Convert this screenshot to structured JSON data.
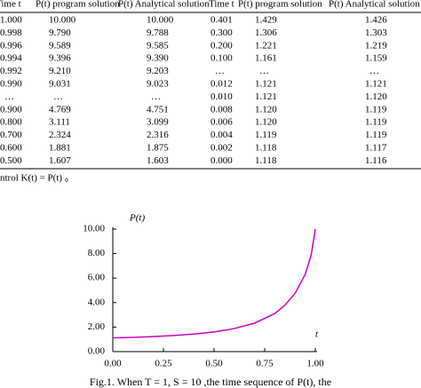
{
  "table": {
    "header": [
      "Time t",
      "P(t) program solution",
      "P(t) Analytical solution",
      "Time t",
      "P(t) program solution",
      "P(t) Analytical solution"
    ],
    "rows": [
      [
        "1.000",
        "10.000",
        "10.000",
        "0.401",
        "1.429",
        "1.426"
      ],
      [
        "0.998",
        "9.790",
        "9.788",
        "0.300",
        "1.306",
        "1.303"
      ],
      [
        "0.996",
        "9.589",
        "9.585",
        "0.200",
        "1.221",
        "1.219"
      ],
      [
        "0.994",
        "9.396",
        "9.390",
        "0.100",
        "1.161",
        "1.159"
      ],
      [
        "0.992",
        "9.210",
        "9.203",
        "…",
        "…",
        "…"
      ],
      [
        "0.990",
        "9.031",
        "9.023",
        "0.012",
        "1.121",
        "1.121"
      ],
      [
        "…",
        "…",
        "…",
        "0.010",
        "1.121",
        "1.120"
      ],
      [
        "0.900",
        "4.769",
        "4.751",
        "0.008",
        "1.120",
        "1.119"
      ],
      [
        "0.800",
        "3.111",
        "3.099",
        "0.006",
        "1.120",
        "1.119"
      ],
      [
        "0.700",
        "2.324",
        "2.316",
        "0.004",
        "1.119",
        "1.119"
      ],
      [
        "0.600",
        "1.881",
        "1.875",
        "0.002",
        "1.118",
        "1.117"
      ],
      [
        "0.500",
        "1.607",
        "1.603",
        "0.000",
        "1.118",
        "1.116"
      ]
    ]
  },
  "text": "ntrol K(t) = P(t) 。",
  "chart_data": {
    "type": "line",
    "y_label": "P(t)",
    "x_label": "t",
    "x": [
      0,
      0.1,
      0.2,
      0.3,
      0.4,
      0.5,
      0.6,
      0.7,
      0.8,
      0.85,
      0.9,
      0.95,
      0.98,
      1.0
    ],
    "series": [
      {
        "color": "#cc00cc",
        "values": [
          1.12,
          1.16,
          1.22,
          1.31,
          1.43,
          1.6,
          1.88,
          2.32,
          3.1,
          3.8,
          4.75,
          6.3,
          7.9,
          10
        ]
      }
    ],
    "xlim": [
      0,
      1
    ],
    "ylim": [
      0,
      10
    ],
    "xticks": [
      {
        "value": 0,
        "label": "0.00"
      },
      {
        "value": 0.25,
        "label": "0.25"
      },
      {
        "value": 0.5,
        "label": "0.50"
      },
      {
        "value": 0.75,
        "label": "0.75"
      },
      {
        "value": 1,
        "label": "1.00"
      }
    ],
    "yticks": [
      {
        "value": 0,
        "label": "0.00"
      },
      {
        "value": 2,
        "label": "2.00"
      },
      {
        "value": 4,
        "label": "4.00"
      },
      {
        "value": 6,
        "label": "6.00"
      },
      {
        "value": 8,
        "label": "8.00"
      },
      {
        "value": 10,
        "label": "10.00"
      }
    ]
  },
  "caption": "Fig.1.  When  T = 1, S = 10 ,the  time  sequence  of  P(t),  the"
}
